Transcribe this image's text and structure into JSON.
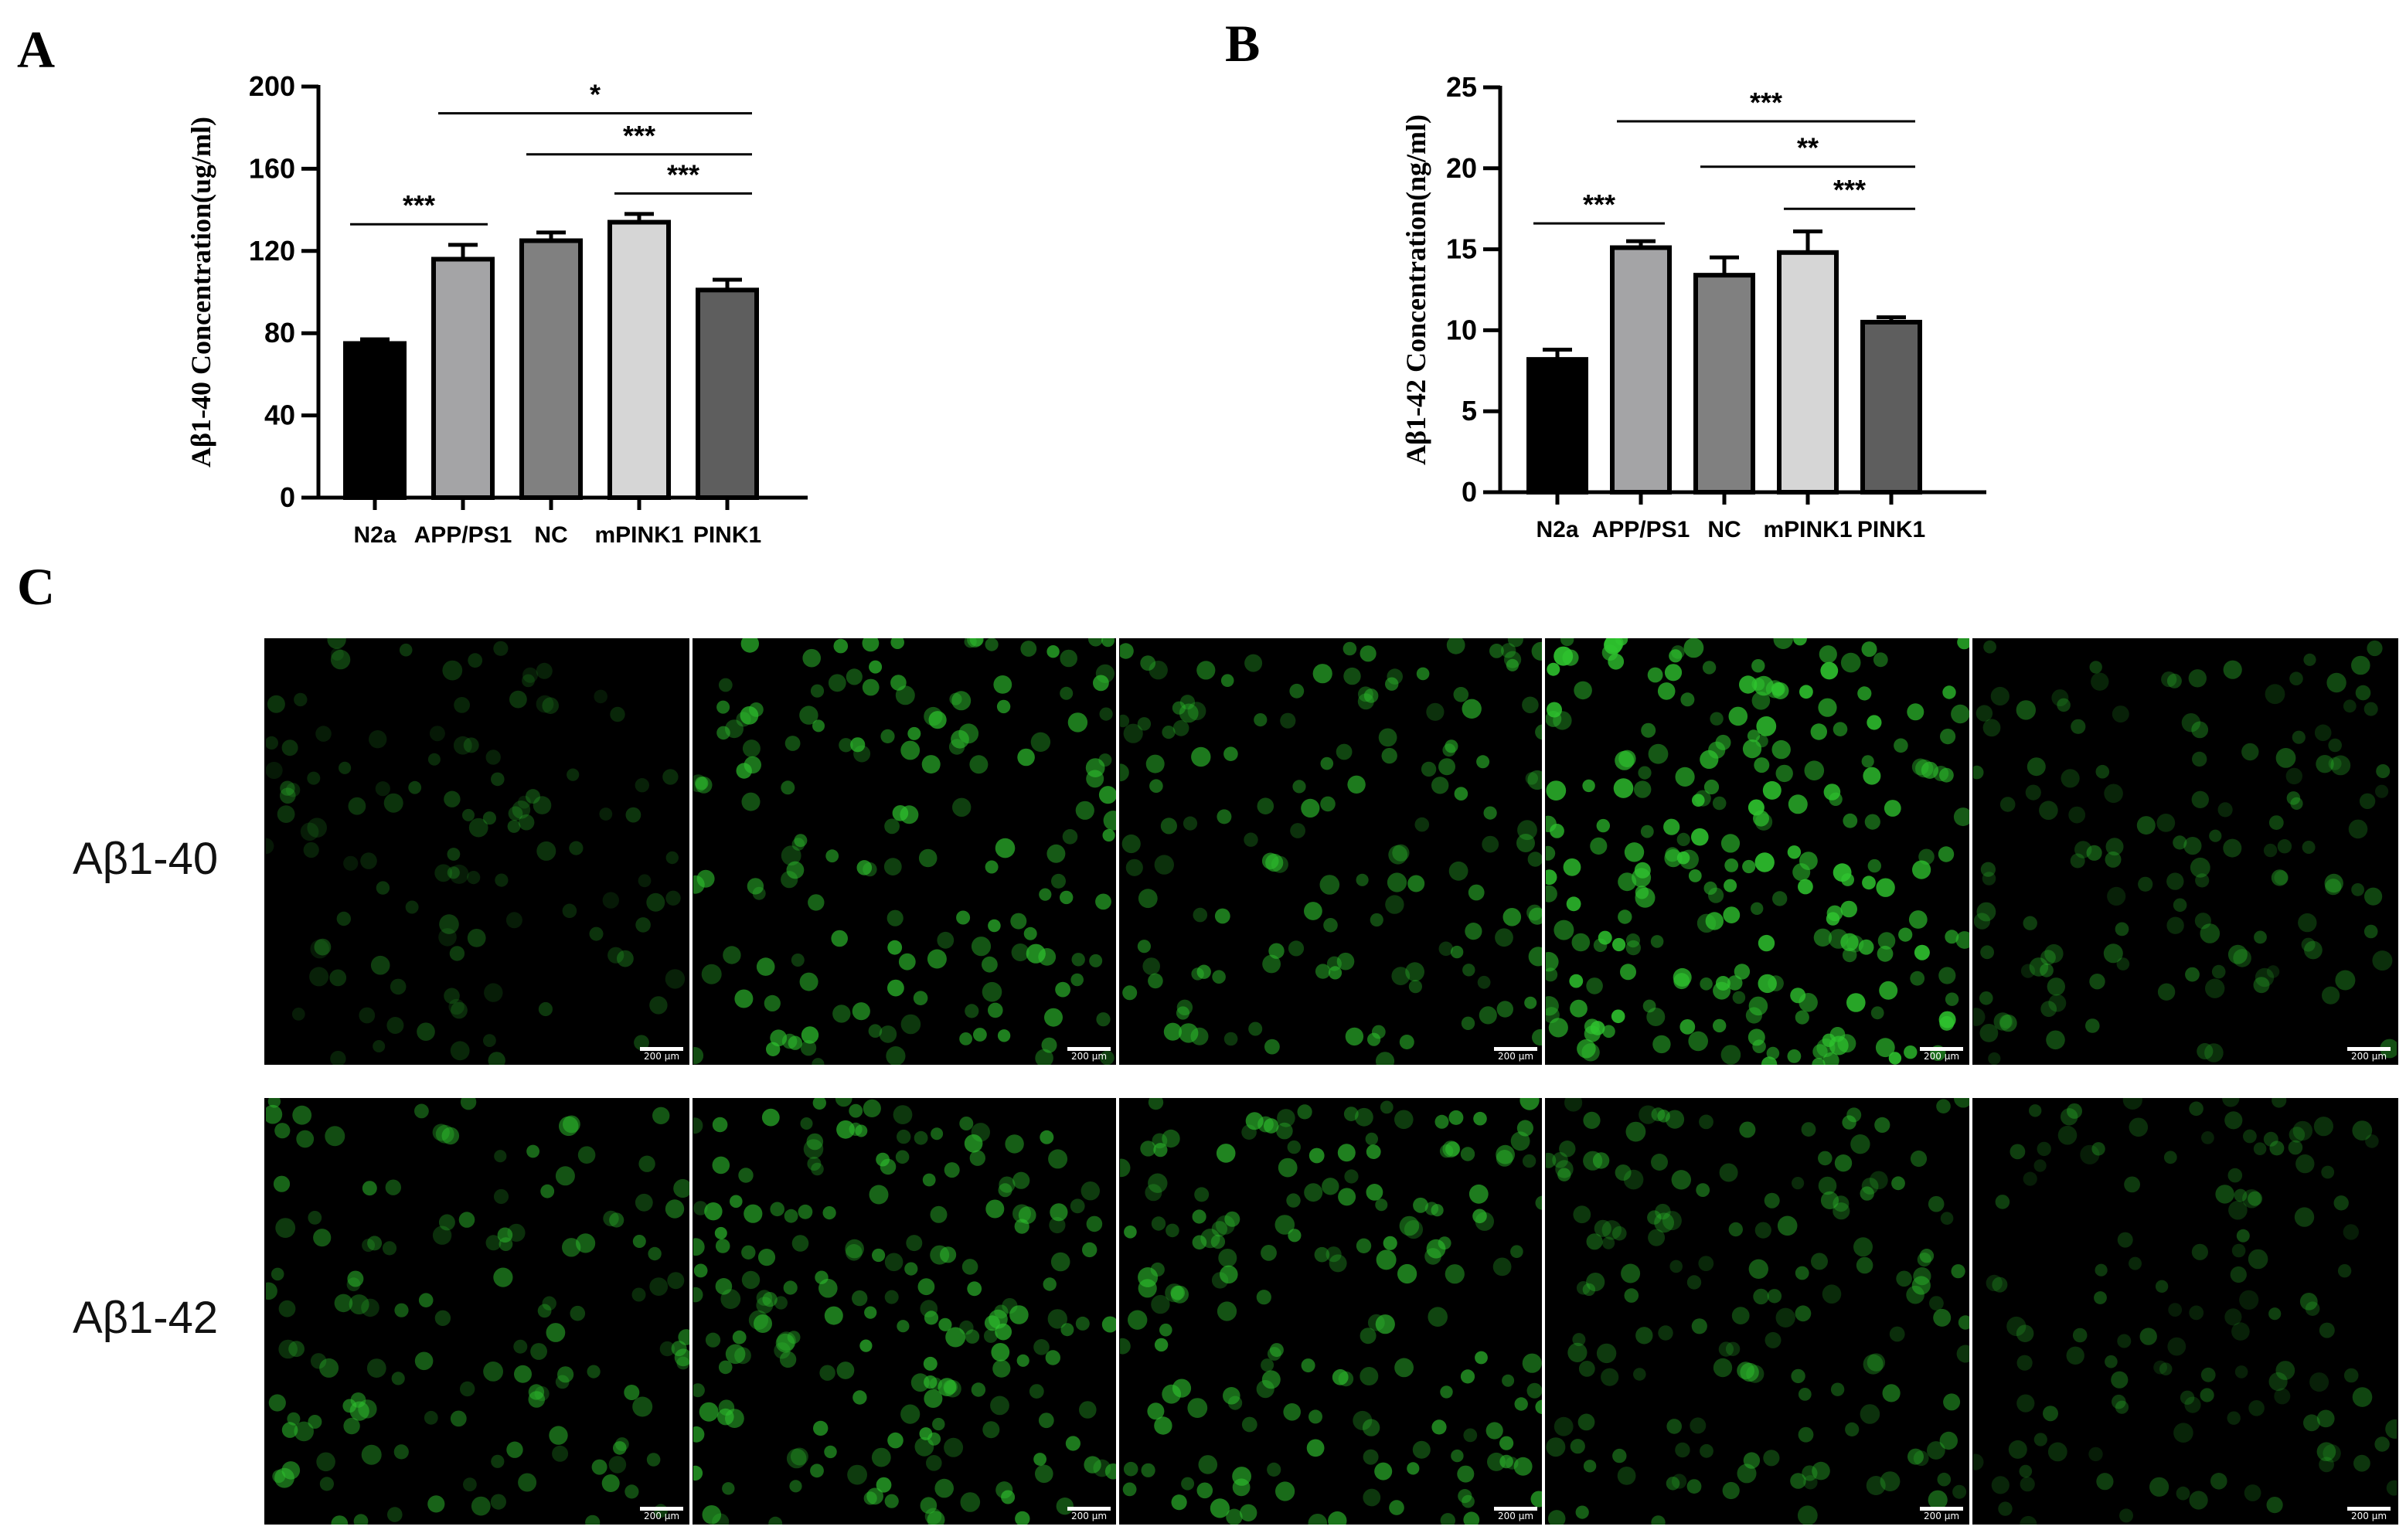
{
  "panels": {
    "a": "A",
    "b": "B",
    "c": "C"
  },
  "chart_data": [
    {
      "type": "bar",
      "ylabel": "Aβ1-40 Concentration(ug/ml)",
      "categories": [
        "N2a",
        "APP/PS1",
        "NC",
        "mPINK1",
        "PINK1"
      ],
      "values": [
        75,
        116,
        125,
        134,
        101
      ],
      "errors": [
        2,
        7,
        4,
        4,
        5
      ],
      "ylim": [
        0,
        200
      ],
      "yticks": [
        "0",
        "40",
        "80",
        "120",
        "160",
        "200"
      ],
      "ytick_values": [
        0,
        40,
        80,
        120,
        160,
        200
      ],
      "bar_colors": [
        "#000000",
        "#a4a4a6",
        "#808080",
        "#d6d6d6",
        "#5e5e5e"
      ],
      "significance": [
        {
          "from": 0,
          "to": 1,
          "y": 133,
          "label": "***"
        },
        {
          "from": 1,
          "to": 4,
          "y": 187,
          "label": "*"
        },
        {
          "from": 2,
          "to": 4,
          "y": 167,
          "label": "***"
        },
        {
          "from": 3,
          "to": 4,
          "y": 148,
          "label": "***"
        }
      ]
    },
    {
      "type": "bar",
      "ylabel": "Aβ1-42 Concentration(ng/ml)",
      "categories": [
        "N2a",
        "APP/PS1",
        "NC",
        "mPINK1",
        "PINK1"
      ],
      "values": [
        8.2,
        15.1,
        13.4,
        14.8,
        10.5
      ],
      "errors": [
        0.6,
        0.4,
        1.1,
        1.3,
        0.3
      ],
      "ylim": [
        0,
        25
      ],
      "yticks": [
        "0",
        "5",
        "10",
        "15",
        "20",
        "25"
      ],
      "ytick_values": [
        0,
        5,
        10,
        15,
        20,
        25
      ],
      "bar_colors": [
        "#000000",
        "#a4a4a6",
        "#808080",
        "#d6d6d6",
        "#5e5e5e"
      ],
      "significance": [
        {
          "from": 0,
          "to": 1,
          "y": 16.6,
          "label": "***"
        },
        {
          "from": 1,
          "to": 4,
          "y": 22.9,
          "label": "***"
        },
        {
          "from": 2,
          "to": 4,
          "y": 20.1,
          "label": "**"
        },
        {
          "from": 3,
          "to": 4,
          "y": 17.5,
          "label": "***"
        }
      ]
    }
  ],
  "microscopy": {
    "rows": [
      {
        "label": "Aβ1-40",
        "brightness": [
          0.35,
          0.8,
          0.7,
          1.0,
          0.45
        ],
        "density": [
          110,
          150,
          140,
          230,
          130
        ]
      },
      {
        "label": "Aβ1-42",
        "brightness": [
          0.6,
          0.75,
          0.75,
          0.55,
          0.4
        ],
        "density": [
          130,
          190,
          170,
          150,
          120
        ]
      }
    ],
    "scale_label": "200 μm",
    "cell_color": "#2fc52f"
  }
}
